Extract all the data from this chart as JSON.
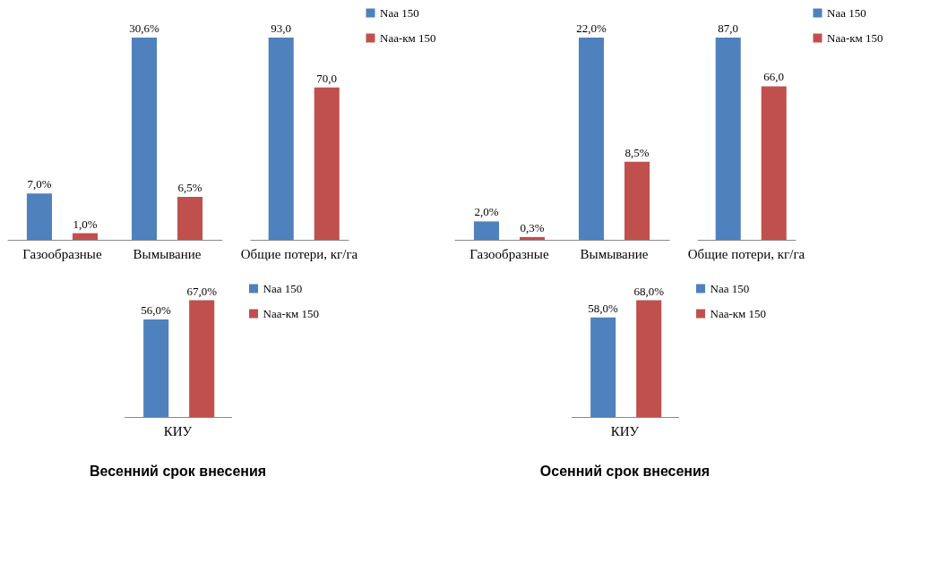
{
  "chart_data": [
    {
      "type": "bar",
      "categories": [
        "Газообразные",
        "Вымывание"
      ],
      "tick_labels": "x",
      "legend": false,
      "series": [
        {
          "color": "#4f81bd",
          "values": [
            7.0,
            30.6
          ],
          "value_labels": [
            "7,0%",
            "30,6%"
          ]
        },
        {
          "color": "#c0504d",
          "values": [
            1.0,
            6.5
          ],
          "value_labels": [
            "1,0%",
            "6,5%"
          ]
        }
      ]
    },
    {
      "type": "bar",
      "categories": [
        "Общие потери, кг/га"
      ],
      "tick_labels": "x",
      "legend": "right",
      "series": [
        {
          "name": "Naa 150",
          "color": "#4f81bd",
          "values": [
            93.0
          ],
          "value_labels": [
            "93,0"
          ]
        },
        {
          "name": "Naa-км 150",
          "color": "#c0504d",
          "values": [
            70.0
          ],
          "value_labels": [
            "70,0"
          ]
        }
      ]
    },
    {
      "type": "bar",
      "categories": [
        "КИУ"
      ],
      "tick_labels": "x",
      "legend": "right",
      "title": "Весенний срок внесения",
      "series": [
        {
          "name": "Naa 150",
          "color": "#4f81bd",
          "values": [
            56.0
          ],
          "value_labels": [
            "56,0%"
          ]
        },
        {
          "name": "Naa-км 150",
          "color": "#c0504d",
          "values": [
            67.0
          ],
          "value_labels": [
            "67,0%"
          ]
        }
      ]
    },
    {
      "type": "bar",
      "categories": [
        "Газообразные",
        "Вымывание"
      ],
      "tick_labels": "x",
      "legend": false,
      "series": [
        {
          "color": "#4f81bd",
          "values": [
            2.0,
            22.0
          ],
          "value_labels": [
            "2,0%",
            "22,0%"
          ]
        },
        {
          "color": "#c0504d",
          "values": [
            0.3,
            8.5
          ],
          "value_labels": [
            "0,3%",
            "8,5%"
          ]
        }
      ]
    },
    {
      "type": "bar",
      "categories": [
        "Общие потери, кг/га"
      ],
      "tick_labels": "x",
      "legend": "right",
      "series": [
        {
          "name": "Naa 150",
          "color": "#4f81bd",
          "values": [
            87.0
          ],
          "value_labels": [
            "87,0"
          ]
        },
        {
          "name": "Naa-км 150",
          "color": "#c0504d",
          "values": [
            66.0
          ],
          "value_labels": [
            "66,0"
          ]
        }
      ]
    },
    {
      "type": "bar",
      "categories": [
        "КИУ"
      ],
      "tick_labels": "x",
      "legend": "right",
      "title": "Осенний срок внесения",
      "series": [
        {
          "name": "Naa 150",
          "color": "#4f81bd",
          "values": [
            58.0
          ],
          "value_labels": [
            "58,0%"
          ]
        },
        {
          "name": "Naa-км 150",
          "color": "#c0504d",
          "values": [
            68.0
          ],
          "value_labels": [
            "68,0%"
          ]
        }
      ]
    }
  ]
}
